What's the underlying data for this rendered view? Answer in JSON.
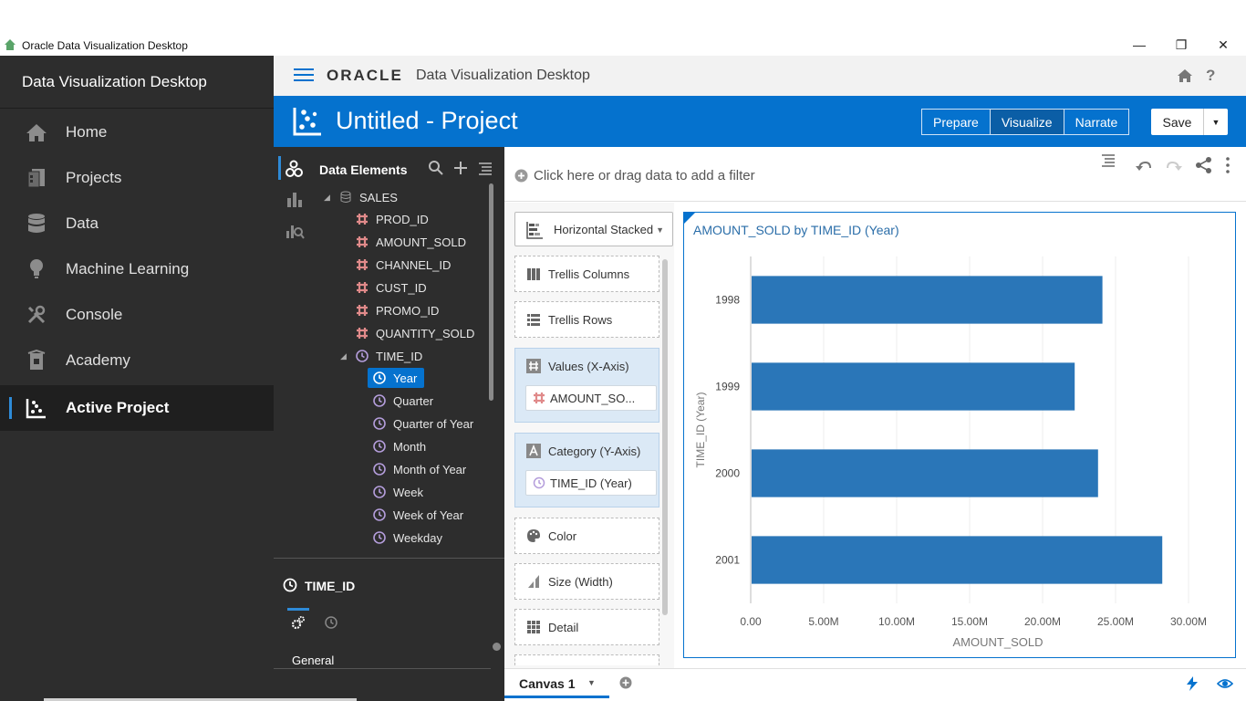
{
  "window": {
    "title": "Oracle Data Visualization Desktop"
  },
  "left_nav": {
    "heading": "Data Visualization Desktop",
    "items": [
      {
        "label": "Home",
        "icon": "home-icon"
      },
      {
        "label": "Projects",
        "icon": "projects-icon"
      },
      {
        "label": "Data",
        "icon": "database-icon"
      },
      {
        "label": "Machine Learning",
        "icon": "lightbulb-icon"
      },
      {
        "label": "Console",
        "icon": "tools-icon"
      },
      {
        "label": "Academy",
        "icon": "academy-icon"
      },
      {
        "label": "Active Project",
        "icon": "scatter-icon",
        "active": true
      }
    ]
  },
  "header": {
    "brand": "ORACLE",
    "product": "Data Visualization Desktop"
  },
  "project": {
    "title": "Untitled - Project",
    "modes": [
      "Prepare",
      "Visualize",
      "Narrate"
    ],
    "selected_mode": "Visualize",
    "save_label": "Save"
  },
  "data_panel": {
    "title": "Data Elements",
    "source": "SALES",
    "columns": [
      "PROD_ID",
      "AMOUNT_SOLD",
      "CHANNEL_ID",
      "CUST_ID",
      "PROMO_ID",
      "QUANTITY_SOLD"
    ],
    "time_column": "TIME_ID",
    "time_levels": [
      "Year",
      "Quarter",
      "Quarter of Year",
      "Month",
      "Month of Year",
      "Week",
      "Week of Year",
      "Weekday"
    ],
    "selected_level": "Year"
  },
  "properties": {
    "title": "TIME_ID",
    "section": "General"
  },
  "filter": {
    "placeholder": "Click here or drag data to add a filter"
  },
  "grammar": {
    "viz_type": "Horizontal Stacked",
    "trellis_columns": "Trellis Columns",
    "trellis_rows": "Trellis Rows",
    "values_label": "Values (X-Axis)",
    "values_pill": "AMOUNT_SO...",
    "category_label": "Category (Y-Axis)",
    "category_pill": "TIME_ID (Year)",
    "color": "Color",
    "size": "Size (Width)",
    "detail": "Detail"
  },
  "canvas": {
    "tab": "Canvas 1"
  },
  "chart_data": {
    "type": "bar",
    "orientation": "horizontal",
    "title": "AMOUNT_SOLD by TIME_ID (Year)",
    "xlabel": "AMOUNT_SOLD",
    "ylabel": "TIME_ID (Year)",
    "categories": [
      "1998",
      "1999",
      "2000",
      "2001"
    ],
    "values": [
      24100000,
      22200000,
      23800000,
      28200000
    ],
    "xlim": [
      0,
      32000000
    ],
    "xticks": [
      0,
      5000000,
      10000000,
      15000000,
      20000000,
      25000000,
      30000000
    ],
    "xtick_labels": [
      "0.00",
      "5.00M",
      "10.00M",
      "15.00M",
      "20.00M",
      "25.00M",
      "30.00M"
    ],
    "bar_color": "#2a76b8",
    "grid": true
  },
  "colors": {
    "accent": "#0572ce",
    "nav_bg": "#2d2d2d",
    "bar": "#2a76b8"
  }
}
